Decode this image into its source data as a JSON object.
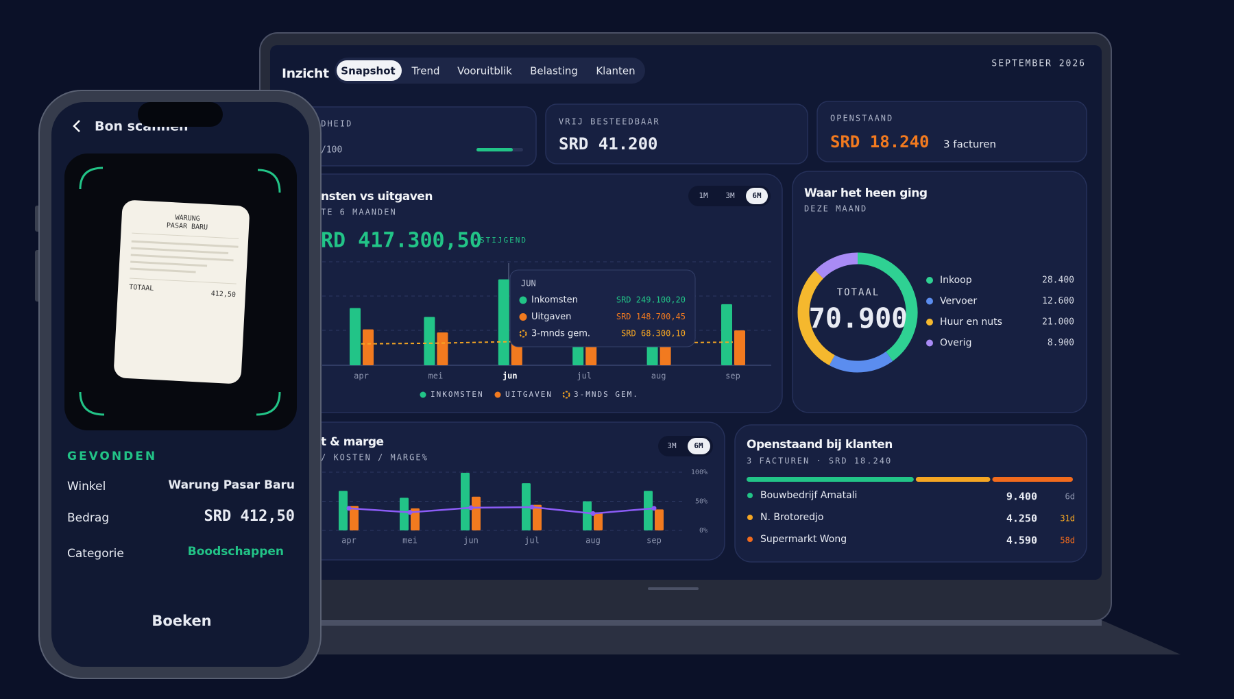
{
  "header": {
    "title": "Inzicht",
    "tabs": [
      "Snapshot",
      "Trend",
      "Vooruitblik",
      "Belasting",
      "Klanten"
    ],
    "date": "SEPTEMBER 2026"
  },
  "kpis": [
    {
      "label": "NDHEID",
      "value": "/100",
      "progress": 78,
      "progress_lim": [
        0,
        100
      ]
    },
    {
      "label": "VRIJ BESTEEDBAAR",
      "value": "SRD 41.200"
    },
    {
      "label": "OPENSTAAND",
      "value": "SRD 18.240",
      "note": "3 facturen"
    }
  ],
  "chart_data": [
    {
      "type": "bar",
      "title": "nsten vs uitgaven",
      "subtitle": "TE 6 MAANDEN",
      "headline": "RD 417.300,50",
      "trend": "STIJGEND",
      "ranges": [
        "1M",
        "3M",
        "6M"
      ],
      "categories": [
        "apr",
        "mei",
        "jun",
        "jul",
        "aug",
        "sep"
      ],
      "series": [
        {
          "name": "INKOMSTEN",
          "color": "#22c487",
          "values": [
            166000,
            140000,
            249100.2,
            130000,
            120000,
            177000
          ]
        },
        {
          "name": "UITGAVEN",
          "color": "#f27a1f",
          "values": [
            104000,
            95000,
            148700.45,
            90000,
            85000,
            101000
          ]
        },
        {
          "name": "3-MNDS GEM.",
          "color": "#f5a623",
          "type": "line",
          "values": [
            62000,
            64000,
            68300.1,
            66000,
            65000,
            67000
          ]
        }
      ],
      "ylim": [
        0,
        300000
      ],
      "tooltip": {
        "title": "JUN",
        "rows": [
          {
            "label": "Inkomsten",
            "value": "SRD 249.100,20"
          },
          {
            "label": "Uitgaven",
            "value": "SRD 148.700,45"
          },
          {
            "label": "3-mnds gem.",
            "value": "SRD 68.300,10"
          }
        ]
      }
    },
    {
      "type": "donut",
      "title": "Waar het heen ging",
      "subtitle": "DEZE MAAND",
      "center_label": "TOTAAL",
      "center_value": "70.900",
      "categories": [
        "Inkoop",
        "Vervoer",
        "Huur en nuts",
        "Overig"
      ],
      "values": [
        28400,
        12600,
        21000,
        8900
      ],
      "value_labels": [
        "28.400",
        "12.600",
        "21.000",
        "8.900"
      ],
      "colors": [
        "#2fd193",
        "#5b8def",
        "#f5b82e",
        "#a98bf5"
      ]
    },
    {
      "type": "bar",
      "title": "t & marge",
      "subtitle": "/ KOSTEN / MARGE%",
      "ranges": [
        "3M",
        "6M"
      ],
      "categories": [
        "apr",
        "mei",
        "jun",
        "jul",
        "aug",
        "sep"
      ],
      "series": [
        {
          "color": "#22c487",
          "values": [
            68,
            56,
            99,
            81,
            50,
            68
          ]
        },
        {
          "color": "#f27a1f",
          "values": [
            42,
            38,
            58,
            44,
            31,
            36
          ]
        },
        {
          "color": "#8b5cf6",
          "type": "line",
          "axis": "y2",
          "values": [
            38,
            31,
            39,
            40,
            29,
            38
          ]
        }
      ],
      "ylim": [
        0,
        100
      ],
      "y2lim": [
        0,
        100
      ],
      "y2ticks": [
        {
          "value": 0,
          "label": "0%"
        },
        {
          "value": 50,
          "label": "50%"
        },
        {
          "value": 100,
          "label": "100%"
        }
      ]
    },
    {
      "type": "stacked-bar",
      "title": "Openstaand bij klanten",
      "subtitle": "3 FACTUREN · SRD 18.240",
      "categories": [
        "Bouwbedrijf Amatali",
        "N. Brotoredjo",
        "Supermarkt Wong"
      ],
      "values": [
        9400,
        4250,
        4590
      ],
      "value_labels": [
        "9.400",
        "4.250",
        "4.590"
      ],
      "ages": [
        "6d",
        "31d",
        "58d"
      ],
      "colors": [
        "#22c487",
        "#f5a623",
        "#f26b1d"
      ]
    }
  ],
  "phone": {
    "title": "Bon scannen",
    "receipt": {
      "store_line1": "WARUNG",
      "store_line2": "PASAR BARU",
      "total_label": "TOTAAL",
      "total": "412,50"
    },
    "found_label": "GEVONDEN",
    "fields": [
      {
        "label": "Winkel",
        "value": "Warung Pasar Baru"
      },
      {
        "label": "Bedrag",
        "value": "SRD 412,50"
      },
      {
        "label": "Categorie",
        "value": "Boodschappen"
      }
    ],
    "button": "Boeken"
  }
}
